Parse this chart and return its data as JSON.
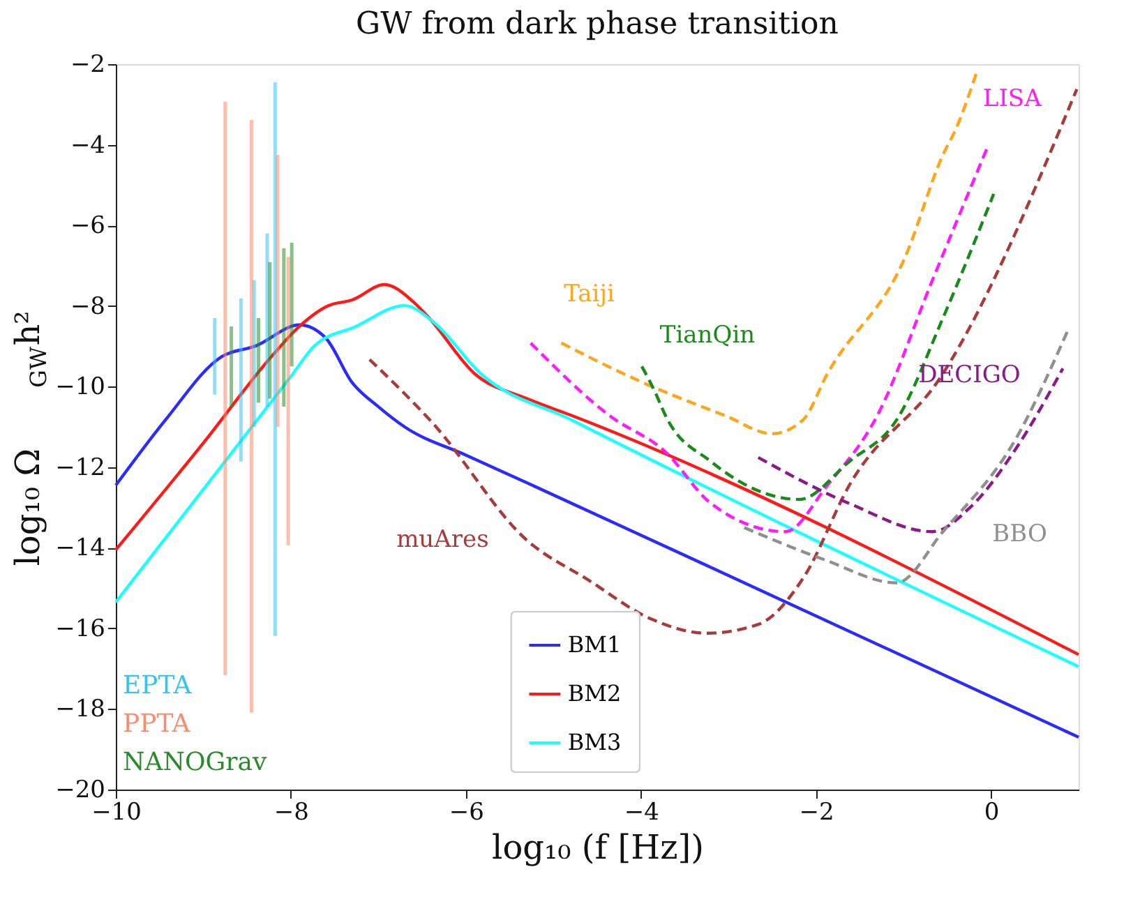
{
  "chart_data": {
    "type": "line",
    "title": "GW from dark phase transition",
    "xlabel": "log₁₀ (f [Hz])",
    "ylabel": "log₁₀ Ω$_{GW}$h²",
    "xlim": [
      -10,
      1
    ],
    "ylim": [
      -20,
      -2
    ],
    "xticks": [
      -10,
      -8,
      -6,
      -4,
      -2,
      0
    ],
    "yticks": [
      -20,
      -18,
      -16,
      -14,
      -12,
      -10,
      -8,
      -6,
      -4,
      -2
    ],
    "grid": false,
    "legend": "bottom",
    "series": [
      {
        "name": "BM1",
        "line_style": "solid",
        "color": "#2b2bff",
        "x": [
          -10,
          -9.43,
          -8.8,
          -8.4,
          -7.9,
          -7.6,
          -7.3,
          -7.0,
          -6.7,
          -6.0,
          -5.31,
          -2.3,
          1.0
        ],
        "values": [
          -12.45,
          -10.82,
          -9.27,
          -8.99,
          -8.47,
          -8.8,
          -9.9,
          -10.5,
          -11.0,
          -11.7,
          -12.38,
          -15.39,
          -18.7
        ]
      },
      {
        "name": "BM2",
        "line_style": "solid",
        "color": "#ff1a1a",
        "x": [
          -10,
          -9,
          -8.2,
          -7.9,
          -7.58,
          -7.3,
          -6.93,
          -6.6,
          -6.42,
          -5.9,
          -5.3,
          -4.79,
          1.0
        ],
        "values": [
          -14.05,
          -11.4,
          -9.2,
          -8.5,
          -8.0,
          -7.85,
          -7.47,
          -7.9,
          -8.3,
          -9.68,
          -10.3,
          -10.72,
          -16.65
        ]
      },
      {
        "name": "BM3",
        "line_style": "solid",
        "color": "#1affff",
        "x": [
          -10,
          -9,
          -8,
          -7.73,
          -7.26,
          -6.7,
          -6.37,
          -5.83,
          -4.79,
          1.0
        ],
        "values": [
          -15.35,
          -12.55,
          -9.75,
          -8.99,
          -8.51,
          -7.99,
          -8.4,
          -9.68,
          -10.83,
          -16.95
        ]
      },
      {
        "name": "EPTA",
        "type": "bar",
        "color": "#33c3f5",
        "x": [
          -8.87,
          -8.57,
          -8.42,
          -8.27,
          -8.18
        ],
        "base": [
          -10.2,
          -11.86,
          -11.0,
          -10.5,
          -16.19
        ],
        "values": [
          1.9,
          4.05,
          3.64,
          4.3,
          13.74
        ]
      },
      {
        "name": "PPTA",
        "type": "bar",
        "color": "#fa8b6c",
        "x": [
          -8.75,
          -8.45,
          -8.15,
          -8.03
        ],
        "base": [
          -17.16,
          -18.09,
          -11.0,
          -13.94
        ],
        "values": [
          14.23,
          14.71,
          6.75,
          7.16
        ]
      },
      {
        "name": "NANOGrav",
        "type": "bar",
        "color": "#2a8a2a",
        "x": [
          -8.68,
          -8.37,
          -8.24,
          -8.08,
          -7.99
        ],
        "base": [
          -10.5,
          -10.4,
          -10.3,
          -10.5,
          -9.5
        ],
        "values": [
          1.99,
          2.1,
          3.39,
          3.93,
          3.07
        ]
      },
      {
        "name": "LISA",
        "line_style": "dashed",
        "color": "#ff1aff",
        "x": [
          -5.26,
          -4.36,
          -3.72,
          -3.2,
          -2.35,
          -1.87,
          -1.3,
          -0.67,
          -0.03
        ],
        "values": [
          -8.92,
          -10.72,
          -11.62,
          -12.9,
          -13.6,
          -12.45,
          -10.72,
          -7.36,
          -4.0
        ]
      },
      {
        "name": "Taiji",
        "line_style": "dashed",
        "color": "#ffa51a",
        "x": [
          -4.91,
          -3.99,
          -3.04,
          -2.5,
          -2.15,
          -1.87,
          -0.98,
          -0.55,
          -0.4,
          -0.16
        ],
        "values": [
          -8.92,
          -9.89,
          -10.72,
          -11.17,
          -10.83,
          -9.68,
          -6.78,
          -4.25,
          -3.6,
          -2.17
        ]
      },
      {
        "name": "TianQin",
        "line_style": "dashed",
        "color": "#1a8a1a",
        "x": [
          -3.99,
          -3.84,
          -3.72,
          -3.2,
          -2.19,
          -1.62,
          -1.08,
          -0.55,
          0.03
        ],
        "values": [
          -9.5,
          -10.13,
          -10.72,
          -11.86,
          -12.8,
          -11.86,
          -10.83,
          -8.3,
          -5.22
        ]
      },
      {
        "name": "muAres",
        "line_style": "dashed",
        "color": "#a83a3a",
        "x": [
          -7.1,
          -6.37,
          -5.31,
          -4.6,
          -3.88,
          -3.25,
          -2.66,
          -2.14,
          -1.62,
          -0.55,
          0.98
        ],
        "values": [
          -9.33,
          -10.93,
          -13.8,
          -14.8,
          -15.77,
          -16.12,
          -15.9,
          -14.73,
          -12.45,
          -9.68,
          -2.62
        ]
      },
      {
        "name": "DECIGO",
        "line_style": "dashed",
        "color": "#8a1a8a",
        "x": [
          -2.66,
          -1.62,
          -0.67,
          -0.24,
          0.29,
          0.82
        ],
        "values": [
          -11.76,
          -12.9,
          -13.6,
          -13.0,
          -11.52,
          -9.55
        ]
      },
      {
        "name": "BBO",
        "line_style": "dashed",
        "color": "#8f8f8f",
        "x": [
          -2.82,
          -1.9,
          -1.08,
          -0.55,
          0.29,
          0.87
        ],
        "values": [
          -13.5,
          -14.3,
          -14.87,
          -13.6,
          -11.27,
          -8.64
        ]
      }
    ]
  }
}
